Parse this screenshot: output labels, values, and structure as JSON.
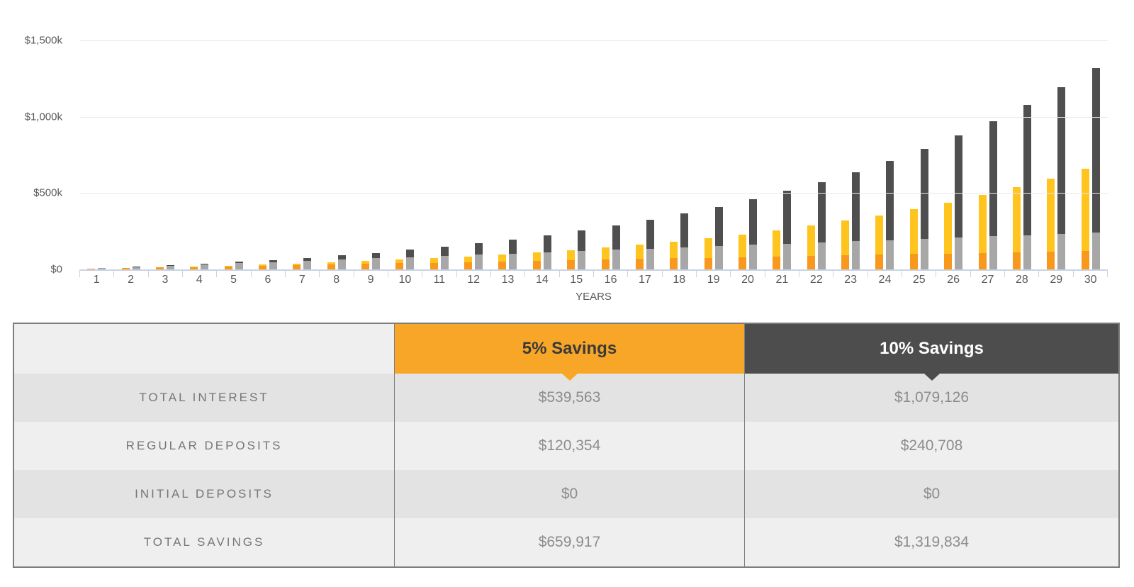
{
  "chart_data": {
    "type": "bar",
    "title": "",
    "xlabel": "YEARS",
    "ylabel": "",
    "grid": true,
    "legend": "none",
    "x": [
      1,
      2,
      3,
      4,
      5,
      6,
      7,
      8,
      9,
      10,
      11,
      12,
      13,
      14,
      15,
      16,
      17,
      18,
      19,
      20,
      21,
      22,
      23,
      24,
      25,
      26,
      27,
      28,
      29,
      30
    ],
    "ylim": [
      0,
      1500000
    ],
    "y_ticks": [
      {
        "label": "$1,500k",
        "value": 1500000
      },
      {
        "label": "$1,000k",
        "value": 1000000
      },
      {
        "label": "$500k",
        "value": 500000
      },
      {
        "label": "$0",
        "value": 0
      }
    ],
    "bar_groups": [
      {
        "name": "5% Savings",
        "segments": [
          {
            "name": "Regular deposits",
            "color": "#f8981d",
            "values": [
              4012,
              8024,
              12035,
              16047,
              20059,
              24071,
              28083,
              32094,
              36106,
              40118,
              44130,
              48142,
              52153,
              56165,
              60177,
              64189,
              68201,
              72212,
              76224,
              80236,
              84248,
              88260,
              92271,
              96283,
              100295,
              104307,
              108319,
              112330,
              116342,
              120354
            ]
          },
          {
            "name": "Interest",
            "color": "#ffc41e",
            "values": [
              0,
              401,
              1244,
              2572,
              4434,
              6884,
              9977,
              13784,
              18372,
              23820,
              30213,
              37648,
              46227,
              56069,
              67288,
              80034,
              94456,
              110723,
              129016,
              149540,
              172517,
              198193,
              226839,
              258751,
              294254,
              333708,
              377516,
              426101,
              479943,
              539563
            ]
          }
        ]
      },
      {
        "name": "10% Savings",
        "segments": [
          {
            "name": "Regular deposits",
            "color": "#a7a7a7",
            "values": [
              8024,
              16047,
              24071,
              32094,
              40118,
              48142,
              56165,
              64189,
              72212,
              80236,
              88260,
              96283,
              104307,
              112330,
              120354,
              128378,
              136401,
              144425,
              152448,
              160472,
              168496,
              176519,
              184543,
              192566,
              200590,
              208614,
              216637,
              224661,
              232684,
              240708
            ]
          },
          {
            "name": "Interest",
            "color": "#4f4f4f",
            "values": [
              0,
              802,
              2488,
              5144,
              8868,
              13768,
              19954,
              27568,
              36744,
              47640,
              60426,
              75296,
              92454,
              112138,
              134576,
              160068,
              188912,
              221446,
              258032,
              299080,
              345034,
              396386,
              453678,
              517502,
              588508,
              667416,
              755032,
              852202,
              959886,
              1079126
            ]
          }
        ]
      }
    ]
  },
  "table": {
    "columns": [
      {
        "label": "5% Savings",
        "header_color": "#f8a627",
        "header_text_color": "#3a3a3a"
      },
      {
        "label": "10% Savings",
        "header_color": "#4d4d4d",
        "header_text_color": "#ffffff"
      }
    ],
    "rows": [
      {
        "label": "TOTAL INTEREST",
        "values": [
          "$539,563",
          "$1,079,126"
        ]
      },
      {
        "label": "REGULAR DEPOSITS",
        "values": [
          "$120,354",
          "$240,708"
        ]
      },
      {
        "label": "INITIAL DEPOSITS",
        "values": [
          "$0",
          "$0"
        ]
      },
      {
        "label": "TOTAL SAVINGS",
        "values": [
          "$659,917",
          "$1,319,834"
        ]
      }
    ]
  },
  "colors": {
    "gridline": "#e9e9e9",
    "axis": "#c9d3e6",
    "axis_text": "#595959",
    "row_dark": "#e3e3e3",
    "row_light": "#efefef"
  }
}
